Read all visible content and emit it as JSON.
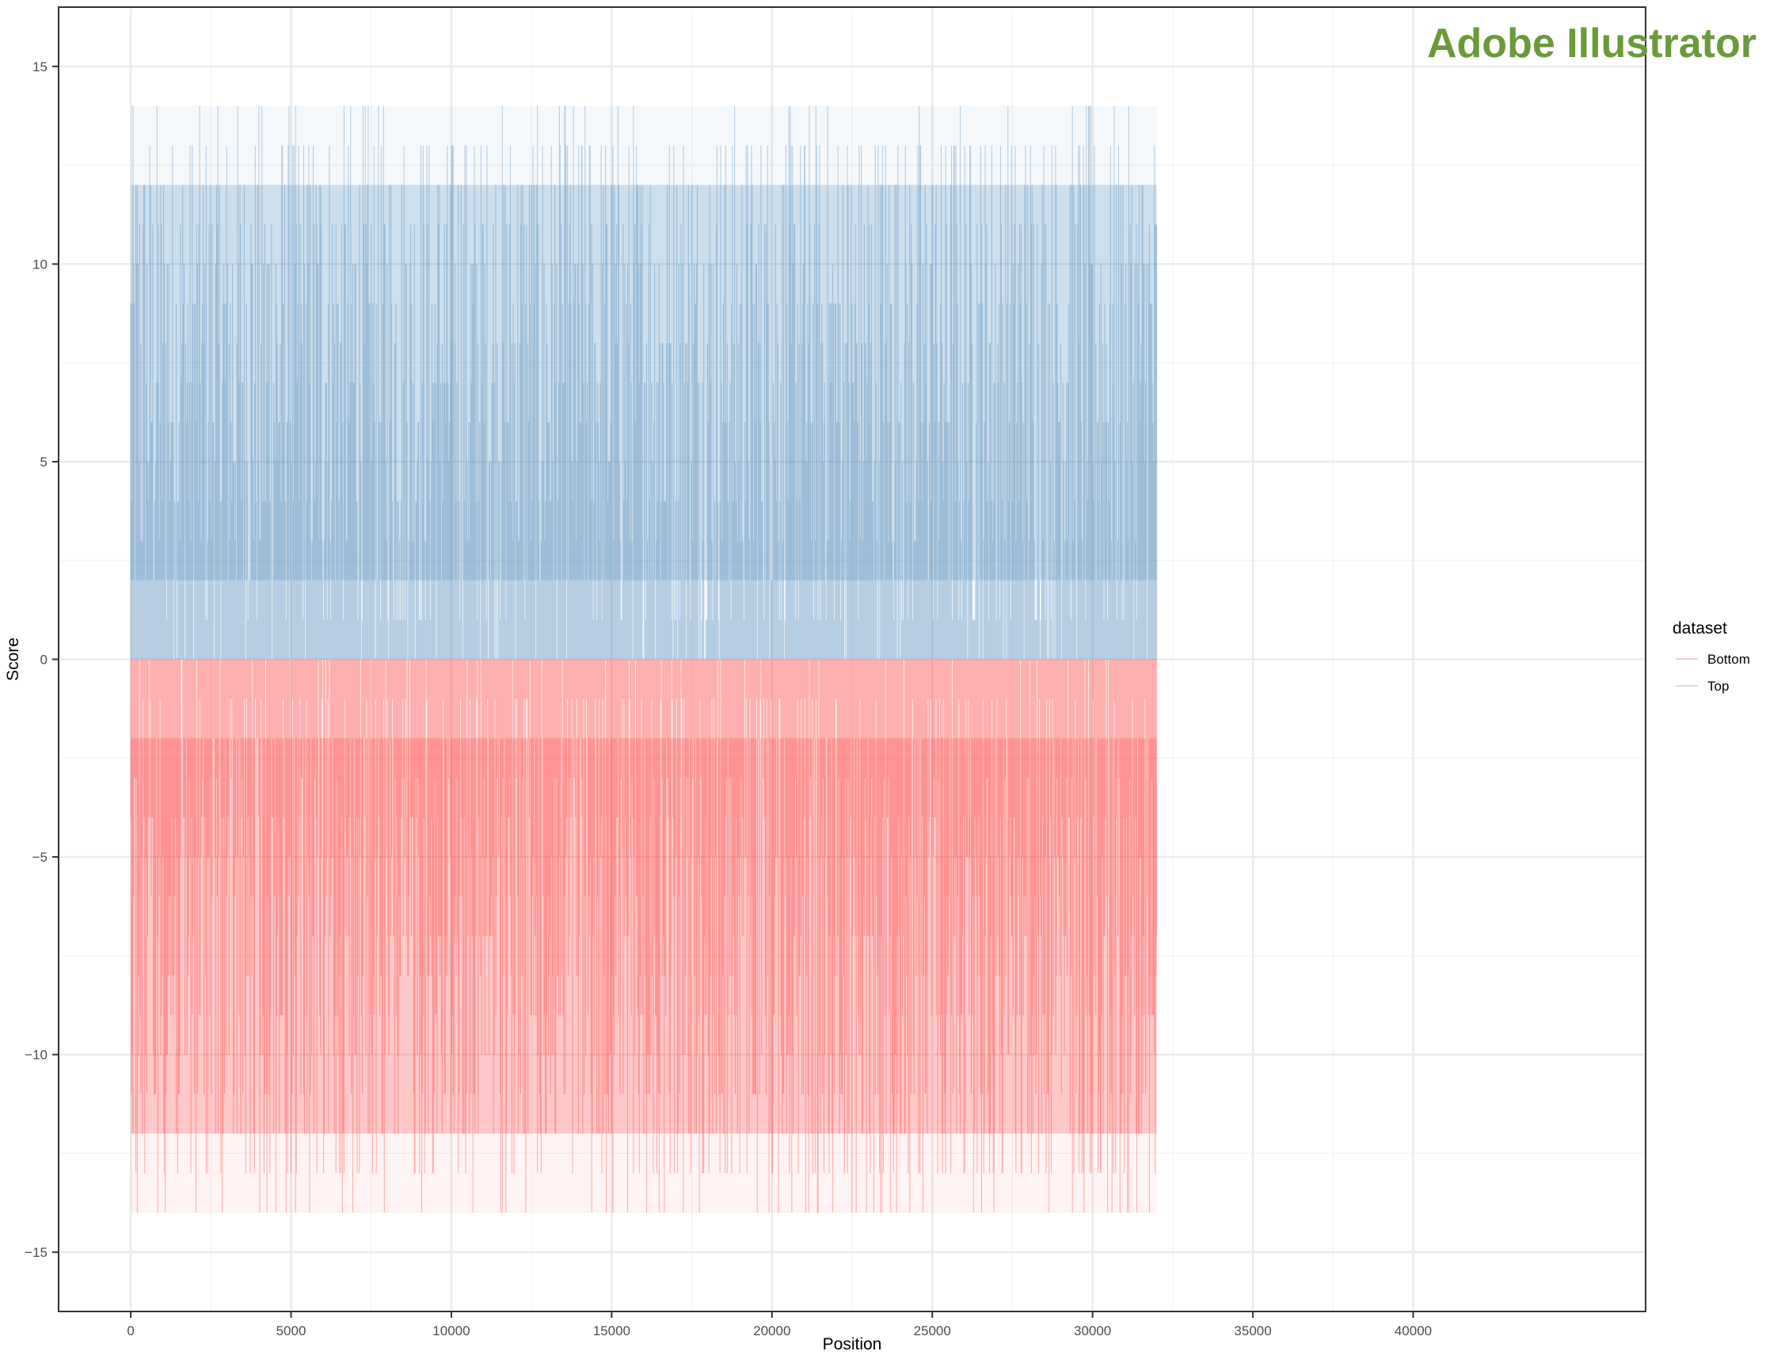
{
  "chart_data": {
    "type": "line",
    "title": "",
    "xlabel": "Position",
    "ylabel": "Score",
    "xlim": [
      -2250,
      47250
    ],
    "ylim": [
      -16.5,
      16.5
    ],
    "x_ticks": [
      0,
      5000,
      10000,
      15000,
      20000,
      25000,
      30000,
      35000,
      40000
    ],
    "x_tick_labels": [
      "0",
      "5000",
      "10000",
      "15000",
      "20000",
      "25000",
      "30000",
      "35000",
      "40000"
    ],
    "y_ticks": [
      -15,
      -10,
      -5,
      0,
      5,
      10,
      15
    ],
    "y_tick_labels": [
      "−15",
      "−10",
      "−5",
      "0",
      "5",
      "10",
      "15"
    ],
    "grid": true,
    "legend": {
      "title": "dataset",
      "placement": "right",
      "entries": [
        "Bottom",
        "Top"
      ]
    },
    "series": [
      {
        "name": "Top",
        "color": "#4682b4",
        "x_range": [
          0,
          32000
        ],
        "y_min": 0,
        "y_max": 14,
        "dense_band": [
          2,
          12
        ]
      },
      {
        "name": "Bottom",
        "color": "#ff3030",
        "x_range": [
          0,
          32000
        ],
        "y_min": -14,
        "y_max": 0,
        "dense_band": [
          -12,
          -2
        ]
      }
    ]
  },
  "watermark": "Adobe Illustrator"
}
